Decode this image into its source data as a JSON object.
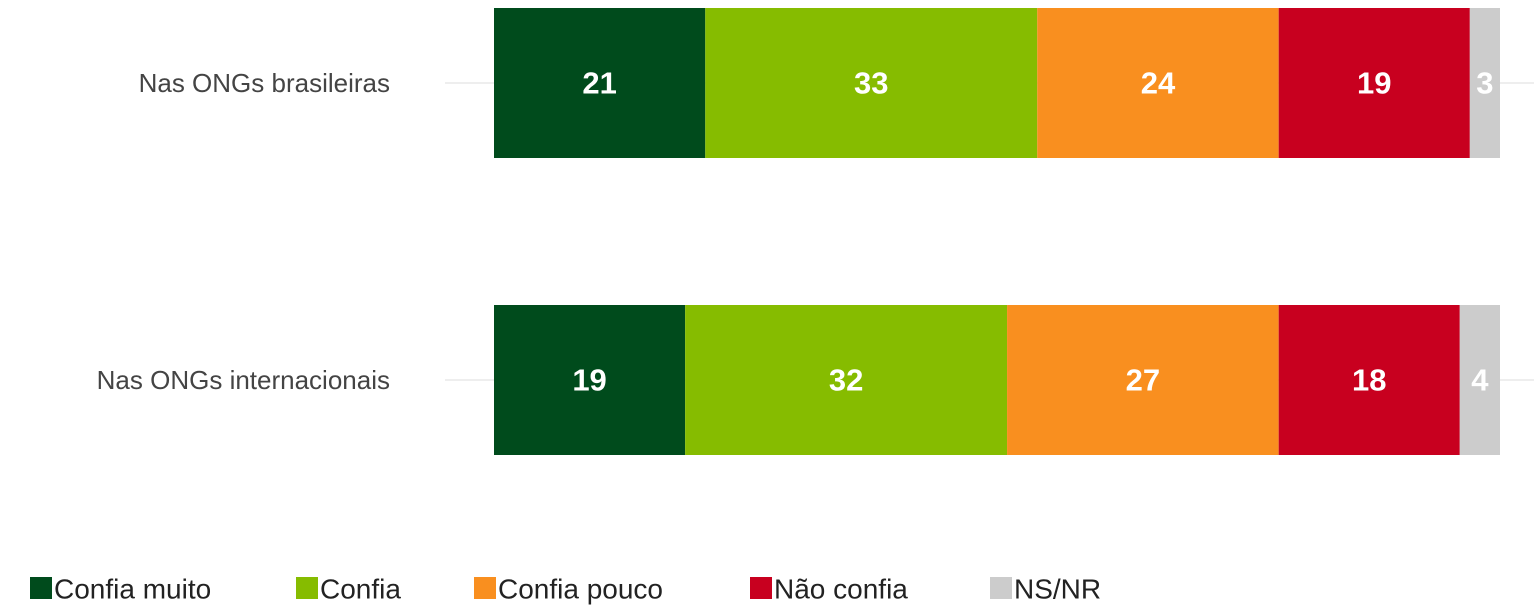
{
  "chart_data": {
    "type": "bar",
    "orientation": "horizontal",
    "stacked": true,
    "categories": [
      "Nas ONGs brasileiras",
      "Nas ONGs internacionais"
    ],
    "series": [
      {
        "name": "Confia muito",
        "color": "#004b1c",
        "values": [
          21,
          19
        ]
      },
      {
        "name": "Confia",
        "color": "#86bc00",
        "values": [
          33,
          32
        ]
      },
      {
        "name": "Confia pouco",
        "color": "#f98f1f",
        "values": [
          24,
          27
        ]
      },
      {
        "name": "Não confia",
        "color": "#c8001f",
        "values": [
          19,
          18
        ]
      },
      {
        "name": "NS/NR",
        "color": "#cccccc",
        "values": [
          3,
          4
        ]
      }
    ],
    "xlim": [
      0,
      100
    ],
    "legend": "bottom-left"
  }
}
